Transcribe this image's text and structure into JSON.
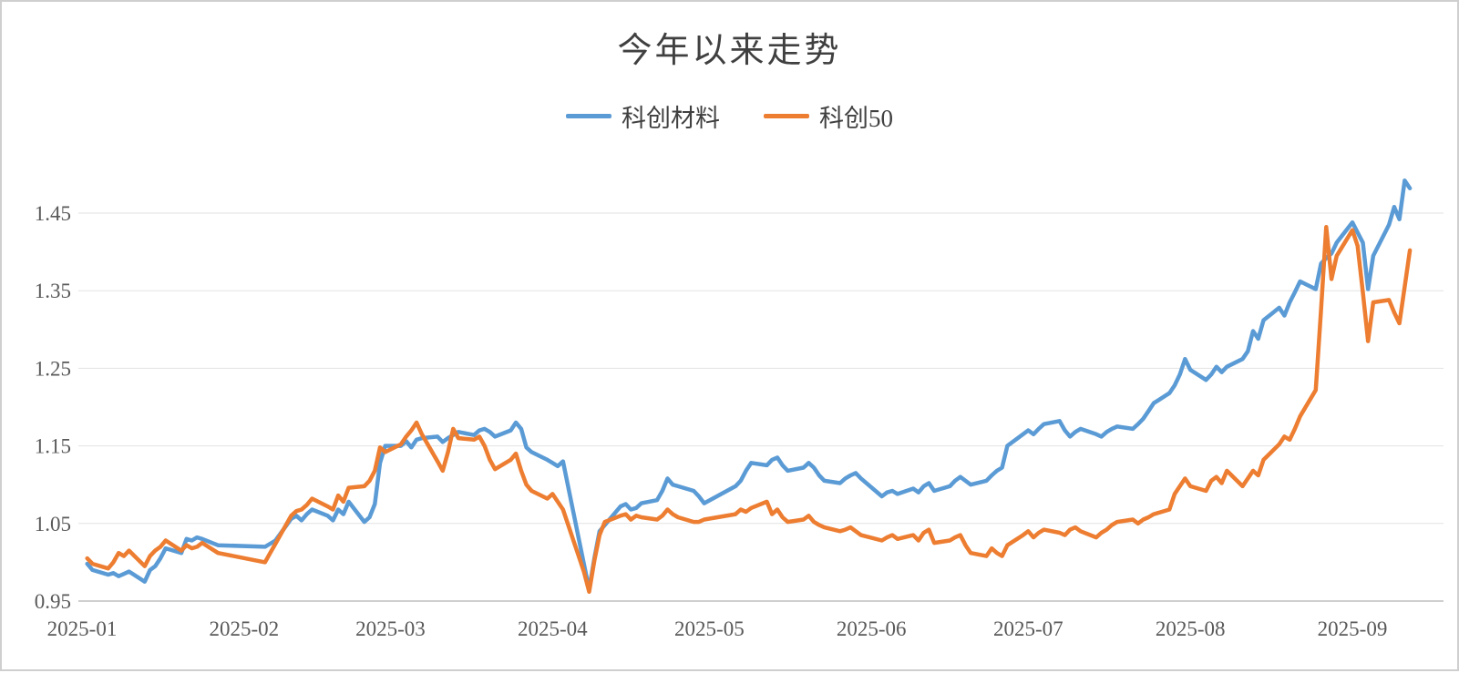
{
  "page": {
    "background": "#ffffff",
    "border_color": "#cfcfcf"
  },
  "chart_data": {
    "type": "line",
    "title": "今年以来走势",
    "legend_position": "top",
    "grid": true,
    "ylim": [
      0.95,
      1.45
    ],
    "yticks": [
      0.95,
      1.05,
      1.15,
      1.25,
      1.35,
      1.45
    ],
    "xticks": [
      "2025-01",
      "2025-02",
      "2025-03",
      "2025-04",
      "2025-05",
      "2025-06",
      "2025-07",
      "2025-08",
      "2025-09"
    ],
    "axis_text_color": "#595959",
    "grid_color": "#e2e2e2",
    "axis_line_color": "#bfbfbf",
    "title_color": "#404040",
    "x": [
      "2025-01-02",
      "2025-01-03",
      "2025-01-06",
      "2025-01-07",
      "2025-01-08",
      "2025-01-09",
      "2025-01-10",
      "2025-01-13",
      "2025-01-14",
      "2025-01-15",
      "2025-01-16",
      "2025-01-17",
      "2025-01-20",
      "2025-01-21",
      "2025-01-22",
      "2025-01-23",
      "2025-01-24",
      "2025-01-27",
      "2025-02-05",
      "2025-02-06",
      "2025-02-07",
      "2025-02-10",
      "2025-02-11",
      "2025-02-12",
      "2025-02-13",
      "2025-02-14",
      "2025-02-17",
      "2025-02-18",
      "2025-02-19",
      "2025-02-20",
      "2025-02-21",
      "2025-02-24",
      "2025-02-25",
      "2025-02-26",
      "2025-02-27",
      "2025-02-28",
      "2025-03-03",
      "2025-03-04",
      "2025-03-05",
      "2025-03-06",
      "2025-03-07",
      "2025-03-10",
      "2025-03-11",
      "2025-03-12",
      "2025-03-13",
      "2025-03-14",
      "2025-03-17",
      "2025-03-18",
      "2025-03-19",
      "2025-03-20",
      "2025-03-21",
      "2025-03-24",
      "2025-03-25",
      "2025-03-26",
      "2025-03-27",
      "2025-03-28",
      "2025-03-31",
      "2025-04-01",
      "2025-04-02",
      "2025-04-03",
      "2025-04-07",
      "2025-04-08",
      "2025-04-09",
      "2025-04-10",
      "2025-04-11",
      "2025-04-14",
      "2025-04-15",
      "2025-04-16",
      "2025-04-17",
      "2025-04-18",
      "2025-04-21",
      "2025-04-22",
      "2025-04-23",
      "2025-04-24",
      "2025-04-25",
      "2025-04-28",
      "2025-04-29",
      "2025-04-30",
      "2025-05-06",
      "2025-05-07",
      "2025-05-08",
      "2025-05-09",
      "2025-05-12",
      "2025-05-13",
      "2025-05-14",
      "2025-05-15",
      "2025-05-16",
      "2025-05-19",
      "2025-05-20",
      "2025-05-21",
      "2025-05-22",
      "2025-05-23",
      "2025-05-26",
      "2025-05-27",
      "2025-05-28",
      "2025-05-29",
      "2025-05-30",
      "2025-06-03",
      "2025-06-04",
      "2025-06-05",
      "2025-06-06",
      "2025-06-09",
      "2025-06-10",
      "2025-06-11",
      "2025-06-12",
      "2025-06-13",
      "2025-06-16",
      "2025-06-17",
      "2025-06-18",
      "2025-06-19",
      "2025-06-20",
      "2025-06-23",
      "2025-06-24",
      "2025-06-25",
      "2025-06-26",
      "2025-06-27",
      "2025-06-30",
      "2025-07-01",
      "2025-07-02",
      "2025-07-03",
      "2025-07-04",
      "2025-07-07",
      "2025-07-08",
      "2025-07-09",
      "2025-07-10",
      "2025-07-11",
      "2025-07-14",
      "2025-07-15",
      "2025-07-16",
      "2025-07-17",
      "2025-07-18",
      "2025-07-21",
      "2025-07-22",
      "2025-07-23",
      "2025-07-24",
      "2025-07-25",
      "2025-07-28",
      "2025-07-29",
      "2025-07-30",
      "2025-07-31",
      "2025-08-01",
      "2025-08-04",
      "2025-08-05",
      "2025-08-06",
      "2025-08-07",
      "2025-08-08",
      "2025-08-11",
      "2025-08-12",
      "2025-08-13",
      "2025-08-14",
      "2025-08-15",
      "2025-08-18",
      "2025-08-19",
      "2025-08-20",
      "2025-08-21",
      "2025-08-22",
      "2025-08-25",
      "2025-08-26",
      "2025-08-27",
      "2025-08-28",
      "2025-08-29",
      "2025-09-01",
      "2025-09-02",
      "2025-09-03",
      "2025-09-04",
      "2025-09-05",
      "2025-09-08",
      "2025-09-09",
      "2025-09-10",
      "2025-09-11",
      "2025-09-12"
    ],
    "series": [
      {
        "name": "科创材料",
        "color": "#5B9BD5",
        "values": [
          0.998,
          0.99,
          0.984,
          0.986,
          0.982,
          0.985,
          0.988,
          0.975,
          0.99,
          0.995,
          1.005,
          1.018,
          1.012,
          1.03,
          1.028,
          1.032,
          1.03,
          1.022,
          1.02,
          1.024,
          1.028,
          1.056,
          1.06,
          1.054,
          1.062,
          1.068,
          1.06,
          1.054,
          1.068,
          1.062,
          1.078,
          1.052,
          1.058,
          1.075,
          1.128,
          1.15,
          1.15,
          1.156,
          1.148,
          1.158,
          1.16,
          1.162,
          1.155,
          1.16,
          1.164,
          1.168,
          1.164,
          1.17,
          1.172,
          1.168,
          1.162,
          1.17,
          1.18,
          1.172,
          1.148,
          1.142,
          1.132,
          1.128,
          1.124,
          1.13,
          0.998,
          0.965,
          1.005,
          1.04,
          1.048,
          1.072,
          1.075,
          1.068,
          1.07,
          1.076,
          1.08,
          1.092,
          1.108,
          1.1,
          1.098,
          1.092,
          1.085,
          1.076,
          1.098,
          1.105,
          1.118,
          1.128,
          1.125,
          1.132,
          1.135,
          1.125,
          1.118,
          1.122,
          1.128,
          1.122,
          1.112,
          1.105,
          1.102,
          1.108,
          1.112,
          1.115,
          1.108,
          1.085,
          1.09,
          1.092,
          1.088,
          1.095,
          1.09,
          1.098,
          1.102,
          1.092,
          1.098,
          1.105,
          1.11,
          1.105,
          1.1,
          1.105,
          1.112,
          1.118,
          1.122,
          1.15,
          1.165,
          1.17,
          1.165,
          1.172,
          1.178,
          1.182,
          1.17,
          1.162,
          1.168,
          1.172,
          1.165,
          1.162,
          1.168,
          1.172,
          1.175,
          1.172,
          1.178,
          1.185,
          1.195,
          1.205,
          1.218,
          1.228,
          1.242,
          1.262,
          1.248,
          1.235,
          1.242,
          1.252,
          1.245,
          1.252,
          1.262,
          1.272,
          1.298,
          1.288,
          1.312,
          1.328,
          1.318,
          1.335,
          1.348,
          1.362,
          1.352,
          1.385,
          1.392,
          1.398,
          1.412,
          1.438,
          1.425,
          1.412,
          1.352,
          1.395,
          1.435,
          1.458,
          1.442,
          1.492,
          1.482
        ]
      },
      {
        "name": "科创50",
        "color": "#ED7D31",
        "values": [
          1.005,
          0.998,
          0.992,
          1.0,
          1.012,
          1.008,
          1.015,
          0.995,
          1.008,
          1.015,
          1.02,
          1.028,
          1.015,
          1.022,
          1.018,
          1.02,
          1.025,
          1.012,
          1.0,
          1.012,
          1.024,
          1.06,
          1.066,
          1.068,
          1.074,
          1.082,
          1.072,
          1.068,
          1.086,
          1.078,
          1.096,
          1.098,
          1.105,
          1.118,
          1.148,
          1.142,
          1.152,
          1.162,
          1.17,
          1.18,
          1.165,
          1.13,
          1.118,
          1.142,
          1.172,
          1.16,
          1.158,
          1.162,
          1.15,
          1.132,
          1.12,
          1.132,
          1.14,
          1.118,
          1.1,
          1.092,
          1.082,
          1.088,
          1.078,
          1.068,
          0.988,
          0.962,
          1.002,
          1.035,
          1.052,
          1.06,
          1.062,
          1.055,
          1.06,
          1.058,
          1.055,
          1.06,
          1.068,
          1.062,
          1.058,
          1.052,
          1.052,
          1.055,
          1.062,
          1.068,
          1.065,
          1.07,
          1.078,
          1.062,
          1.068,
          1.058,
          1.052,
          1.055,
          1.06,
          1.052,
          1.048,
          1.045,
          1.04,
          1.042,
          1.045,
          1.04,
          1.035,
          1.028,
          1.032,
          1.035,
          1.03,
          1.035,
          1.028,
          1.038,
          1.042,
          1.025,
          1.028,
          1.032,
          1.035,
          1.022,
          1.012,
          1.008,
          1.018,
          1.012,
          1.008,
          1.022,
          1.035,
          1.04,
          1.032,
          1.038,
          1.042,
          1.038,
          1.035,
          1.042,
          1.045,
          1.04,
          1.032,
          1.038,
          1.042,
          1.048,
          1.052,
          1.055,
          1.05,
          1.055,
          1.058,
          1.062,
          1.068,
          1.088,
          1.098,
          1.108,
          1.098,
          1.092,
          1.105,
          1.11,
          1.102,
          1.118,
          1.098,
          1.108,
          1.118,
          1.112,
          1.132,
          1.152,
          1.162,
          1.158,
          1.172,
          1.188,
          1.222,
          1.325,
          1.432,
          1.365,
          1.395,
          1.428,
          1.408,
          1.348,
          1.285,
          1.335,
          1.338,
          1.322,
          1.308,
          1.355,
          1.402
        ]
      }
    ]
  }
}
